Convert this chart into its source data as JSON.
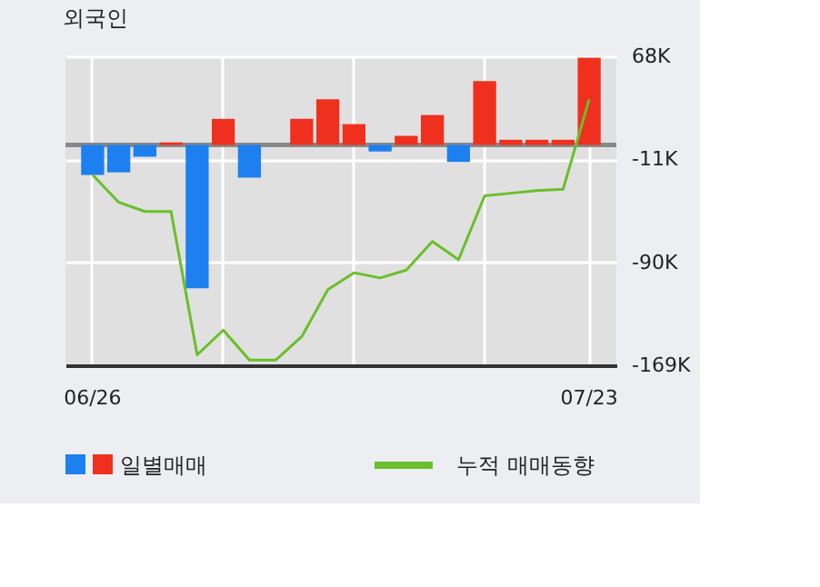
{
  "chart_data": {
    "type": "bar",
    "title": "외국인",
    "categories": [
      "06/26",
      null,
      null,
      null,
      null,
      null,
      null,
      null,
      null,
      null,
      null,
      null,
      null,
      null,
      null,
      null,
      null,
      null,
      null,
      "07/23"
    ],
    "series": [
      {
        "name": "일별매매",
        "colors": [
          "#1e7ff0",
          "#1e7ff0",
          "#1e7ff0",
          "#f0301e",
          "#1e7ff0",
          "#f0301e",
          "#1e7ff0",
          "#f0301e",
          "#f0301e",
          "#f0301e",
          "#f0301e",
          "#1e7ff0",
          "#f0301e",
          "#f0301e",
          "#1e7ff0",
          "#f0301e",
          "#f0301e",
          "#f0301e",
          "#f0301e",
          "#f0301e"
        ],
        "values": [
          -23,
          -21,
          -9,
          2,
          -110,
          20,
          -25,
          0,
          20,
          35,
          16,
          -5,
          7,
          23,
          -13,
          49,
          4,
          4,
          4,
          67
        ]
      },
      {
        "name": "누적 매매동향",
        "type": "line",
        "color": "#6abf2a",
        "values": [
          -23,
          -44,
          -51,
          -51,
          -161,
          -142,
          -165,
          -165,
          -147,
          -111,
          -98,
          -102,
          -96,
          -74,
          -88,
          -39,
          -37,
          -35,
          -34,
          35
        ]
      }
    ],
    "ylim": [
      -169,
      68
    ],
    "yticks": [
      {
        "value": 68,
        "label": "68K"
      },
      {
        "value": -11,
        "label": "-11K"
      },
      {
        "value": -90,
        "label": "-90K"
      },
      {
        "value": -169,
        "label": "-169K"
      }
    ],
    "ref_lines": [
      {
        "axis": "y",
        "value": 0,
        "color": "#888888"
      }
    ],
    "grid": true,
    "legend": "bottom"
  }
}
